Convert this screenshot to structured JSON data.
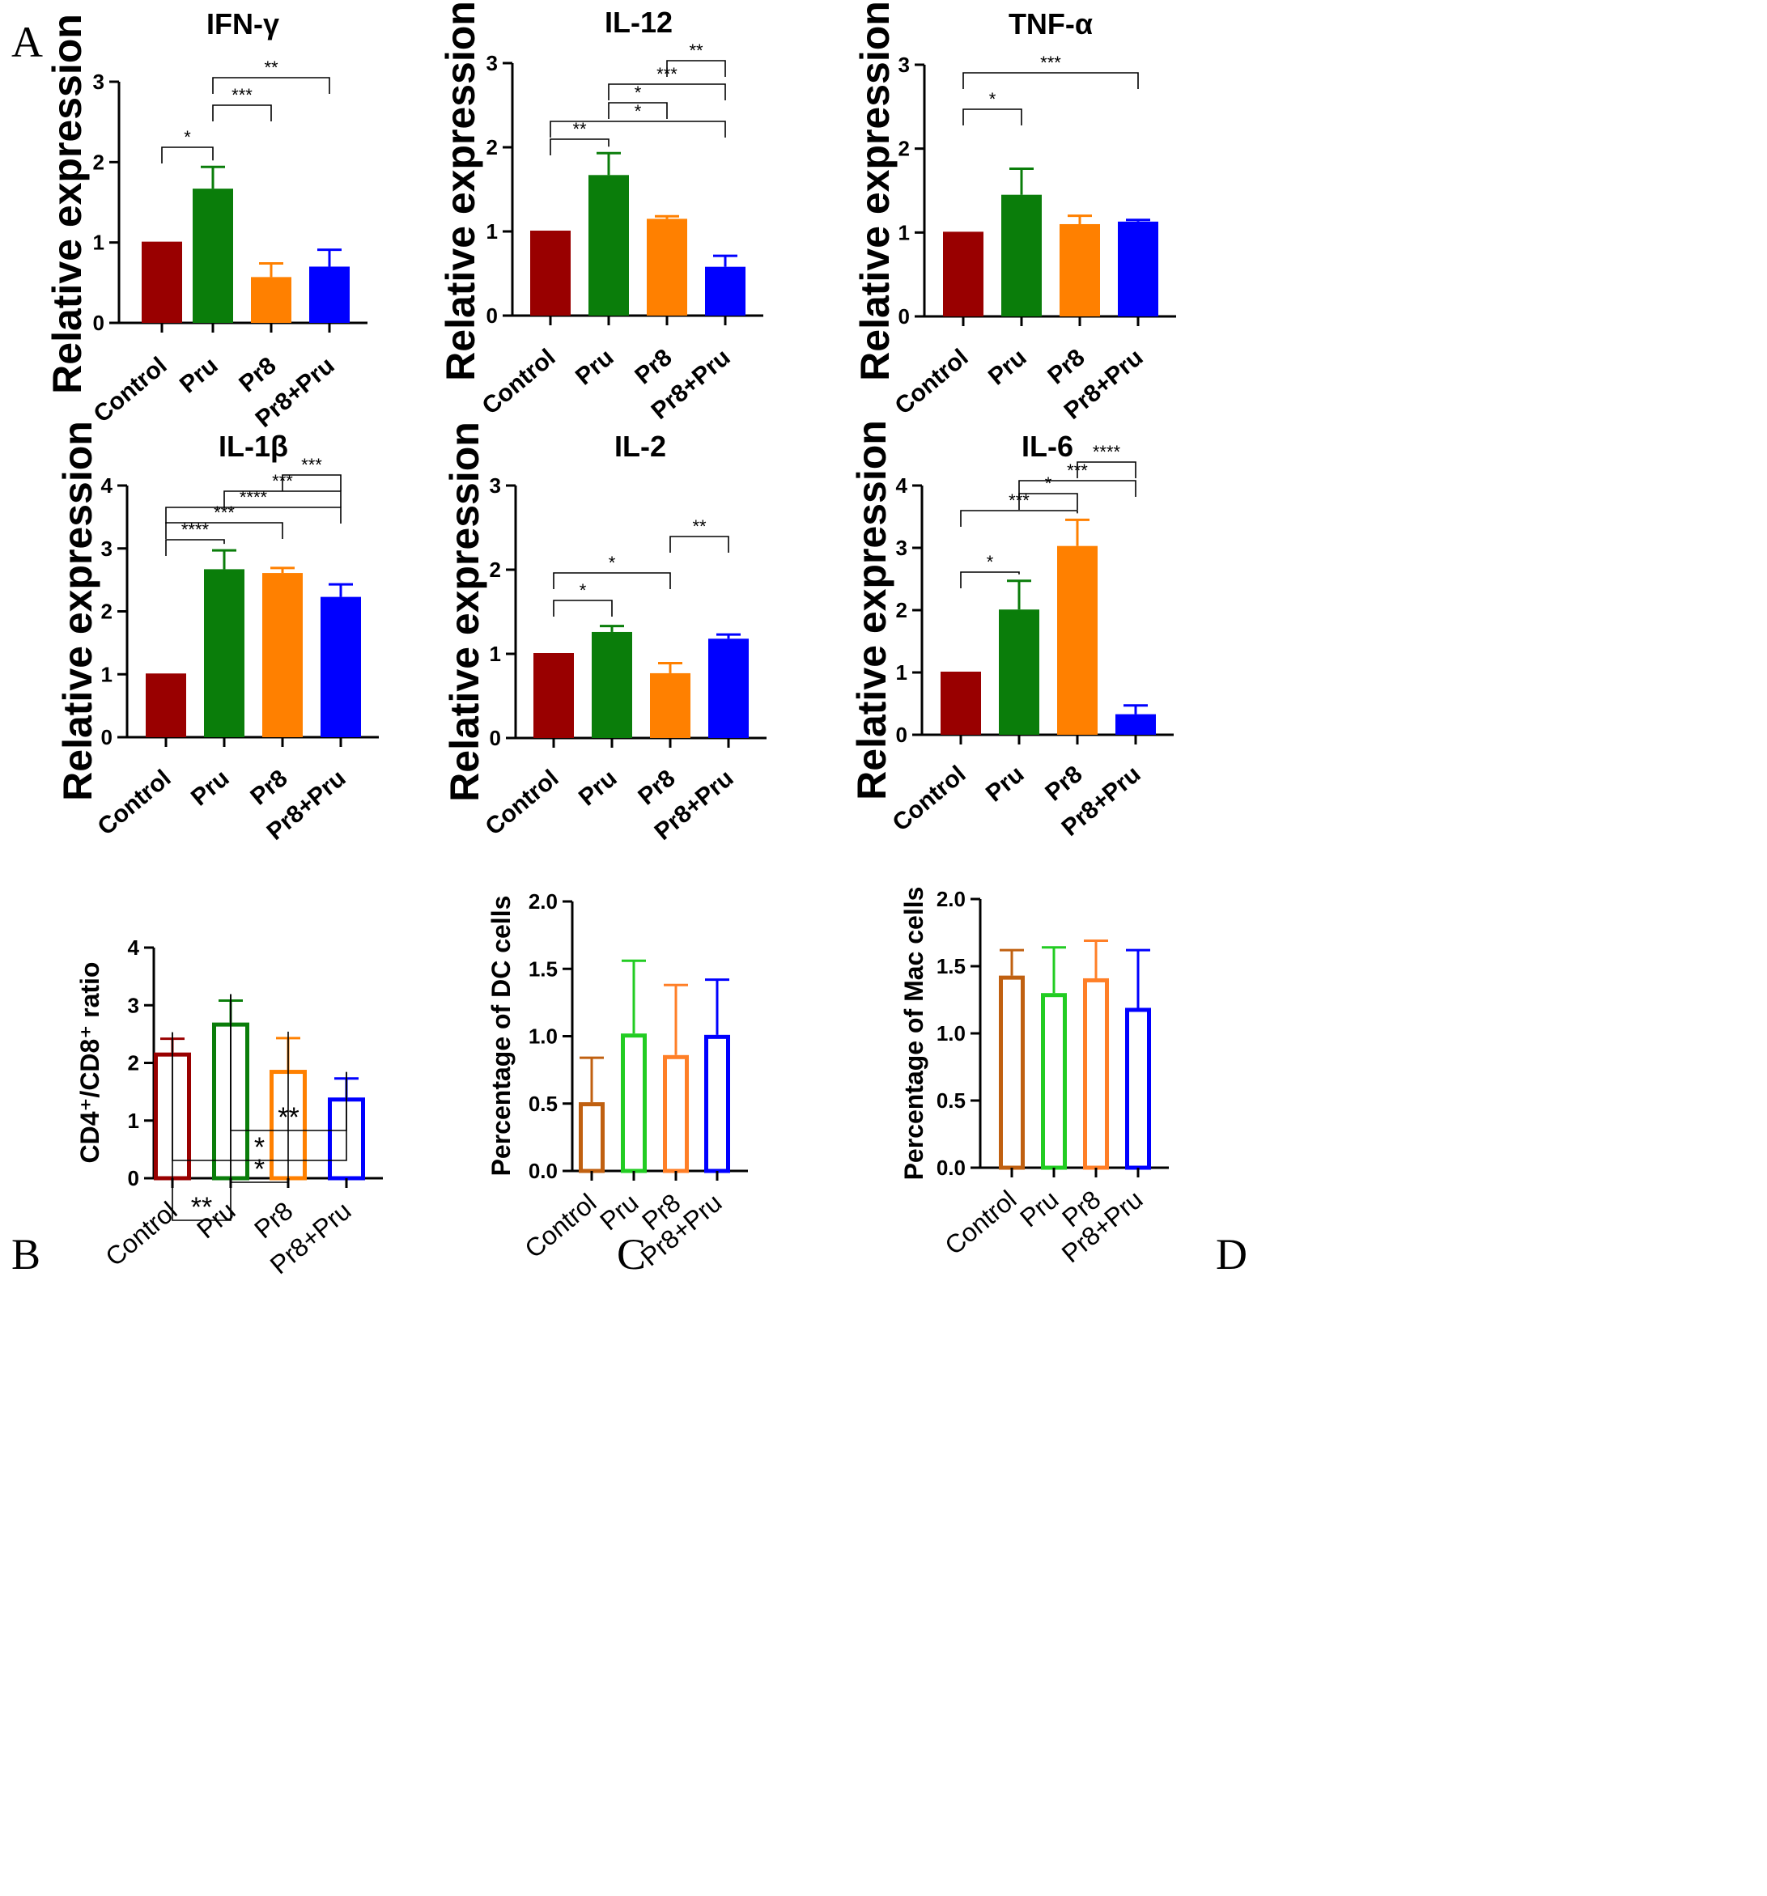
{
  "figure": {
    "panel_letters": [
      "A",
      "B",
      "C",
      "D"
    ]
  },
  "chart_data": [
    {
      "id": "ifn",
      "panel": "A",
      "type": "bar",
      "title": "IFN-γ",
      "ylabel": "Relative expression",
      "ylim": [
        0,
        3
      ],
      "yticks": [
        "0",
        "1",
        "2",
        "3"
      ],
      "categories": [
        "Control",
        "Pru",
        "Pr8",
        "Pr8+Pru"
      ],
      "values": [
        1.0,
        1.67,
        0.57,
        0.7
      ],
      "errors": [
        0,
        0.27,
        0.17,
        0.21
      ],
      "colors": [
        "#990000",
        "#0a7d0a",
        "#ff8000",
        "#0000ff"
      ],
      "fill": "solid",
      "significance": [
        {
          "from": 0,
          "to": 1,
          "label": "*"
        },
        {
          "from": 1,
          "to": 2,
          "label": "***"
        },
        {
          "from": 1,
          "to": 3,
          "label": "**"
        }
      ]
    },
    {
      "id": "il12",
      "panel": "A",
      "type": "bar",
      "title": "IL-12",
      "ylabel": "Relative expression",
      "ylim": [
        0,
        3
      ],
      "yticks": [
        "0",
        "1",
        "2",
        "3"
      ],
      "categories": [
        "Control",
        "Pru",
        "Pr8",
        "Pr8+Pru"
      ],
      "values": [
        1.0,
        1.67,
        1.15,
        0.58
      ],
      "errors": [
        0,
        0.26,
        0.03,
        0.13
      ],
      "colors": [
        "#990000",
        "#0a7d0a",
        "#ff8000",
        "#0000ff"
      ],
      "fill": "solid",
      "significance": [
        {
          "from": 0,
          "to": 1,
          "label": "**"
        },
        {
          "from": 0,
          "to": 3,
          "label": "*"
        },
        {
          "from": 1,
          "to": 2,
          "label": "*"
        },
        {
          "from": 1,
          "to": 3,
          "label": "***"
        },
        {
          "from": 2,
          "to": 3,
          "label": "**"
        }
      ]
    },
    {
      "id": "tnf",
      "panel": "A",
      "type": "bar",
      "title": "TNF-α",
      "ylabel": "Relative expression",
      "ylim": [
        0,
        3
      ],
      "yticks": [
        "0",
        "1",
        "2",
        "3"
      ],
      "categories": [
        "Control",
        "Pru",
        "Pr8",
        "Pr8+Pru"
      ],
      "values": [
        1.0,
        1.45,
        1.1,
        1.13
      ],
      "errors": [
        0,
        0.31,
        0.1,
        0.02
      ],
      "colors": [
        "#990000",
        "#0a7d0a",
        "#ff8000",
        "#0000ff"
      ],
      "fill": "solid",
      "significance": [
        {
          "from": 0,
          "to": 1,
          "label": "*"
        },
        {
          "from": 0,
          "to": 3,
          "label": "***"
        }
      ]
    },
    {
      "id": "il1b",
      "panel": "A",
      "type": "bar",
      "title": "IL-1β",
      "ylabel": "Relative expression",
      "ylim": [
        0,
        4
      ],
      "yticks": [
        "0",
        "1",
        "2",
        "3",
        "4"
      ],
      "categories": [
        "Control",
        "Pru",
        "Pr8",
        "Pr8+Pru"
      ],
      "values": [
        1.0,
        2.67,
        2.61,
        2.23
      ],
      "errors": [
        0,
        0.3,
        0.08,
        0.2
      ],
      "colors": [
        "#990000",
        "#0a7d0a",
        "#ff8000",
        "#0000ff"
      ],
      "fill": "solid",
      "significance": [
        {
          "from": 0,
          "to": 1,
          "label": "****"
        },
        {
          "from": 0,
          "to": 2,
          "label": "***"
        },
        {
          "from": 0,
          "to": 3,
          "label": "****"
        },
        {
          "from": 1,
          "to": 3,
          "label": "***"
        },
        {
          "from": 2,
          "to": 3,
          "label": "***"
        }
      ]
    },
    {
      "id": "il2",
      "panel": "A",
      "type": "bar",
      "title": "IL-2",
      "ylabel": "Relative expression",
      "ylim": [
        0,
        3
      ],
      "yticks": [
        "0",
        "1",
        "2",
        "3"
      ],
      "categories": [
        "Control",
        "Pru",
        "Pr8",
        "Pr8+Pru"
      ],
      "values": [
        1.0,
        1.26,
        0.77,
        1.18
      ],
      "errors": [
        0,
        0.07,
        0.12,
        0.05
      ],
      "colors": [
        "#990000",
        "#0a7d0a",
        "#ff8000",
        "#0000ff"
      ],
      "fill": "solid",
      "significance": [
        {
          "from": 0,
          "to": 1,
          "label": "*"
        },
        {
          "from": 0,
          "to": 2,
          "label": "*"
        },
        {
          "from": 2,
          "to": 3,
          "label": "**"
        }
      ]
    },
    {
      "id": "il6",
      "panel": "A",
      "type": "bar",
      "title": "IL-6",
      "ylabel": "Relative expression",
      "ylim": [
        0,
        4
      ],
      "yticks": [
        "0",
        "1",
        "2",
        "3",
        "4"
      ],
      "categories": [
        "Control",
        "Pru",
        "Pr8",
        "Pr8+Pru"
      ],
      "values": [
        1.0,
        2.01,
        3.03,
        0.33
      ],
      "errors": [
        0,
        0.46,
        0.42,
        0.14
      ],
      "colors": [
        "#990000",
        "#0a7d0a",
        "#ff8000",
        "#0000ff"
      ],
      "fill": "solid",
      "significance": [
        {
          "from": 0,
          "to": 1,
          "label": "*"
        },
        {
          "from": 0,
          "to": 2,
          "label": "***"
        },
        {
          "from": 1,
          "to": 2,
          "label": "*"
        },
        {
          "from": 1,
          "to": 3,
          "label": "***"
        },
        {
          "from": 2,
          "to": 3,
          "label": "****"
        }
      ]
    },
    {
      "id": "cd4cd8",
      "panel": "B",
      "type": "bar",
      "title": "",
      "ylabel": "CD4⁺/CD8⁺ ratio",
      "ylim": [
        0,
        4
      ],
      "yticks": [
        "0",
        "1",
        "2",
        "3",
        "4"
      ],
      "categories": [
        "Control",
        "Pru",
        "Pr8",
        "Pr8+Pru"
      ],
      "values": [
        2.18,
        2.7,
        1.88,
        1.4
      ],
      "errors": [
        0.24,
        0.38,
        0.55,
        0.33
      ],
      "colors": [
        "#990000",
        "#0a7d0a",
        "#ff8000",
        "#0000ff"
      ],
      "fill": "hollow",
      "significance": [
        {
          "from": 0,
          "to": 1,
          "label": "**"
        },
        {
          "from": 1,
          "to": 2,
          "label": "*"
        },
        {
          "from": 0,
          "to": 3,
          "label": "*"
        },
        {
          "from": 1,
          "to": 3,
          "label": "**"
        }
      ]
    },
    {
      "id": "dc",
      "panel": "C",
      "type": "bar",
      "title": "",
      "ylabel": "Percentage of DC cells",
      "ylim": [
        0,
        2
      ],
      "yticks": [
        "0.0",
        "0.5",
        "1.0",
        "1.5",
        "2.0"
      ],
      "categories": [
        "Control",
        "Pru",
        "Pr8",
        "Pr8+Pru"
      ],
      "values": [
        0.51,
        1.02,
        0.86,
        1.01
      ],
      "errors": [
        0.33,
        0.54,
        0.52,
        0.41
      ],
      "colors": [
        "#c06010",
        "#22cc22",
        "#ff7f27",
        "#0000ff"
      ],
      "fill": "hollow",
      "significance": []
    },
    {
      "id": "mac",
      "panel": "D",
      "type": "bar",
      "title": "",
      "ylabel": "Percentage of Mac cells",
      "ylim": [
        0,
        2
      ],
      "yticks": [
        "0.0",
        "0.5",
        "1.0",
        "1.5",
        "2.0"
      ],
      "categories": [
        "Control",
        "Pru",
        "Pr8",
        "Pr8+Pru"
      ],
      "values": [
        1.43,
        1.3,
        1.41,
        1.19
      ],
      "errors": [
        0.19,
        0.34,
        0.28,
        0.43
      ],
      "colors": [
        "#c06010",
        "#22cc22",
        "#ff7f27",
        "#0000ff"
      ],
      "fill": "hollow",
      "significance": []
    }
  ]
}
